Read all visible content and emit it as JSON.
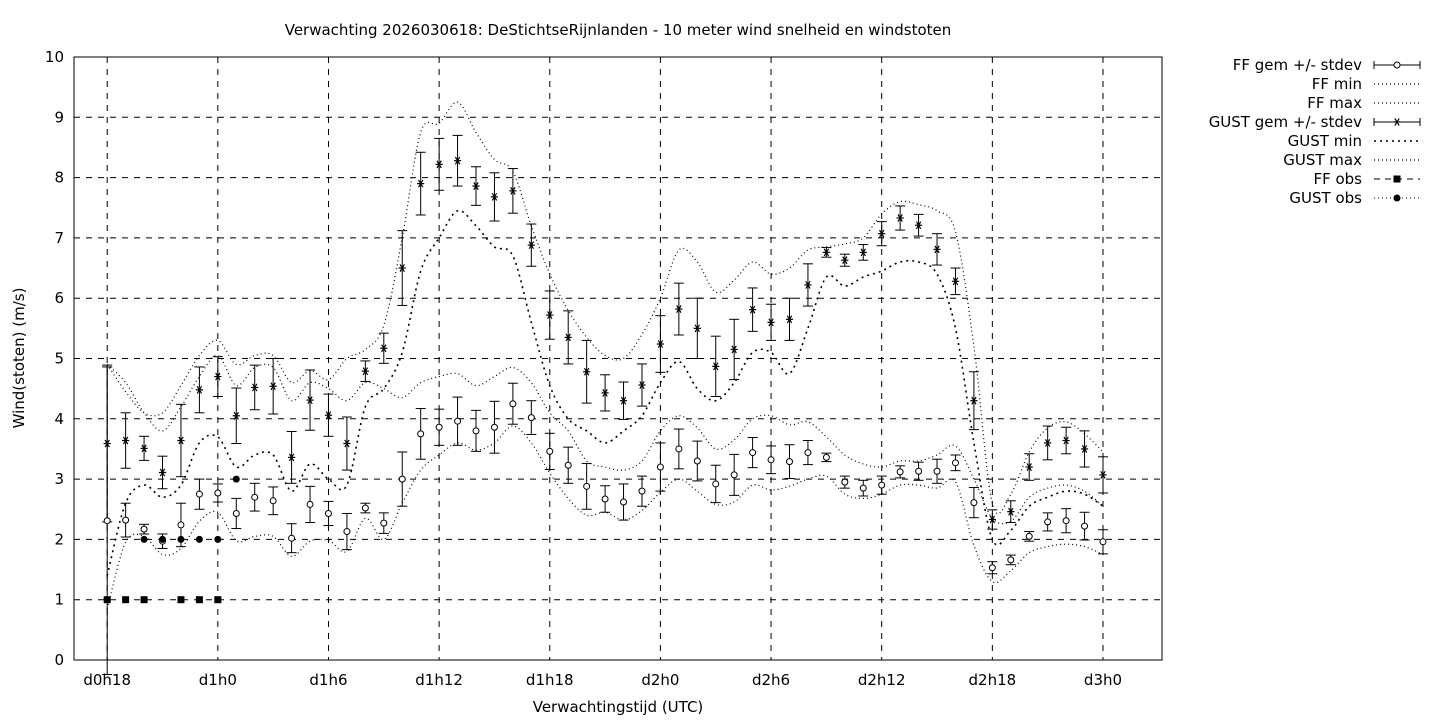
{
  "chart_data": {
    "type": "scatter",
    "title": "Verwachting 2026030618: DeStichtseRijnlanden - 10 meter wind snelheid en windstoten",
    "xlabel": "Verwachtingstijd (UTC)",
    "ylabel": "Wind(stoten) (m/s)",
    "xlim": [
      -1.8,
      57.2
    ],
    "ylim": [
      0,
      10
    ],
    "x_ticks": [
      0,
      6,
      12,
      18,
      24,
      30,
      36,
      42,
      48,
      54
    ],
    "x_tick_labels": [
      "d0h18",
      "d1h0",
      "d1h6",
      "d1h12",
      "d1h18",
      "d2h0",
      "d2h6",
      "d2h12",
      "d2h18",
      "d3h0"
    ],
    "y_ticks": [
      0,
      1,
      2,
      3,
      4,
      5,
      6,
      7,
      8,
      9,
      10
    ],
    "y_tick_labels": [
      "0",
      "1",
      "2",
      "3",
      "4",
      "5",
      "6",
      "7",
      "8",
      "9",
      "10"
    ],
    "grid": true,
    "legend_position": "outside-right",
    "legend": [
      "FF gem +/- stdev",
      "FF min",
      "FF max",
      "GUST gem +/- stdev",
      "GUST min",
      "GUST max",
      "FF obs",
      "GUST obs"
    ],
    "ff_mean": {
      "x": [
        0,
        1,
        2,
        3,
        4,
        5,
        6,
        7,
        8,
        9,
        10,
        11,
        12,
        13,
        14,
        15,
        16,
        17,
        18,
        19,
        20,
        21,
        22,
        23,
        24,
        25,
        26,
        27,
        28,
        29,
        30,
        31,
        32,
        33,
        34,
        35,
        36,
        37,
        38,
        39,
        40,
        41,
        42,
        43,
        44,
        45,
        46,
        47,
        48,
        49,
        50,
        51,
        52,
        53,
        54
      ],
      "mean": [
        2.31,
        2.32,
        2.17,
        1.97,
        2.24,
        2.75,
        2.77,
        2.43,
        2.7,
        2.64,
        2.02,
        2.58,
        2.43,
        2.13,
        2.52,
        2.27,
        3.0,
        3.75,
        3.86,
        3.96,
        3.8,
        3.86,
        4.25,
        4.02,
        3.46,
        3.23,
        2.88,
        2.67,
        2.62,
        2.8,
        3.2,
        3.5,
        3.3,
        2.92,
        3.07,
        3.44,
        3.32,
        3.29,
        3.44,
        3.36,
        2.95,
        2.85,
        2.9,
        3.12,
        3.13,
        3.13,
        3.27,
        2.61,
        1.53,
        1.66,
        2.05,
        2.29,
        2.31,
        2.22,
        1.96
      ],
      "stdev": [
        2.55,
        0.28,
        0.08,
        0.12,
        0.36,
        0.25,
        0.15,
        0.25,
        0.23,
        0.23,
        0.24,
        0.3,
        0.2,
        0.3,
        0.08,
        0.17,
        0.45,
        0.42,
        0.3,
        0.4,
        0.34,
        0.43,
        0.34,
        0.28,
        0.3,
        0.3,
        0.38,
        0.22,
        0.3,
        0.25,
        0.4,
        0.33,
        0.33,
        0.31,
        0.34,
        0.25,
        0.23,
        0.28,
        0.2,
        0.07,
        0.1,
        0.13,
        0.15,
        0.1,
        0.15,
        0.2,
        0.13,
        0.25,
        0.1,
        0.08,
        0.08,
        0.15,
        0.2,
        0.23,
        0.2
      ]
    },
    "gust_mean": {
      "x": [
        0,
        1,
        2,
        3,
        4,
        5,
        6,
        7,
        8,
        9,
        10,
        11,
        12,
        13,
        14,
        15,
        16,
        17,
        18,
        19,
        20,
        21,
        22,
        23,
        24,
        25,
        26,
        27,
        28,
        29,
        30,
        31,
        32,
        33,
        34,
        35,
        36,
        37,
        38,
        39,
        40,
        41,
        42,
        43,
        44,
        45,
        46,
        47,
        48,
        49,
        50,
        51,
        52,
        53,
        54
      ],
      "mean": [
        3.59,
        3.64,
        3.51,
        3.11,
        3.64,
        4.48,
        4.7,
        4.05,
        4.52,
        4.54,
        3.36,
        4.31,
        4.06,
        3.59,
        4.79,
        5.17,
        6.5,
        7.9,
        8.22,
        8.28,
        7.86,
        7.68,
        7.78,
        6.88,
        5.72,
        5.35,
        4.78,
        4.43,
        4.3,
        4.56,
        5.24,
        5.82,
        5.5,
        4.87,
        5.15,
        5.81,
        5.6,
        5.65,
        6.22,
        6.76,
        6.63,
        6.76,
        7.07,
        7.33,
        7.21,
        6.81,
        6.28,
        4.3,
        2.33,
        2.46,
        3.2,
        3.6,
        3.64,
        3.5,
        3.07
      ]
    },
    "ff_min": {
      "x": [
        0,
        1,
        2,
        3,
        4,
        5,
        6,
        7,
        8,
        9,
        10,
        11,
        12,
        13,
        14,
        15,
        16,
        17,
        18,
        19,
        20,
        21,
        22,
        23,
        24,
        25,
        26,
        27,
        28,
        29,
        30,
        31,
        32,
        33,
        34,
        35,
        36,
        37,
        38,
        39,
        40,
        41,
        42,
        43,
        44,
        45,
        46,
        47,
        48,
        49,
        50,
        51,
        52,
        53,
        54
      ],
      "values": [
        0.85,
        1.95,
        2.05,
        1.75,
        1.85,
        2.3,
        2.45,
        1.98,
        2.05,
        2.05,
        1.72,
        1.97,
        1.98,
        1.8,
        2.35,
        2.0,
        2.6,
        3.15,
        3.4,
        3.6,
        3.48,
        3.6,
        3.88,
        3.6,
        3.1,
        2.68,
        2.4,
        2.45,
        2.32,
        2.48,
        2.78,
        3.0,
        2.8,
        2.58,
        2.62,
        2.9,
        2.82,
        2.88,
        3.0,
        3.05,
        2.75,
        2.68,
        2.75,
        2.9,
        2.9,
        2.85,
        2.95,
        1.9,
        1.3,
        1.48,
        1.78,
        1.88,
        1.92,
        1.88,
        1.75
      ]
    },
    "ff_max": {
      "x": [
        0,
        1,
        2,
        3,
        4,
        5,
        6,
        7,
        8,
        9,
        10,
        11,
        12,
        13,
        14,
        15,
        16,
        17,
        18,
        19,
        20,
        21,
        22,
        23,
        24,
        25,
        26,
        27,
        28,
        29,
        30,
        31,
        32,
        33,
        34,
        35,
        36,
        37,
        38,
        39,
        40,
        41,
        42,
        43,
        44,
        45,
        46,
        47,
        48,
        49,
        50,
        51,
        52,
        53,
        54
      ],
      "values": [
        4.9,
        4.6,
        4.1,
        3.8,
        4.2,
        4.7,
        5.05,
        4.55,
        4.85,
        4.85,
        4.3,
        4.6,
        4.5,
        4.3,
        4.6,
        4.5,
        4.35,
        4.6,
        4.7,
        4.75,
        4.55,
        4.7,
        4.85,
        4.6,
        4.1,
        3.8,
        3.3,
        3.2,
        3.15,
        3.3,
        3.8,
        4.05,
        3.85,
        3.5,
        3.65,
        4.0,
        4.05,
        3.9,
        3.95,
        3.7,
        3.4,
        3.25,
        3.2,
        3.3,
        3.3,
        3.4,
        3.55,
        3.0,
        2.35,
        2.3,
        2.7,
        2.85,
        2.9,
        2.8,
        2.55
      ]
    },
    "gust_min": {
      "x": [
        0,
        1,
        2,
        3,
        4,
        5,
        6,
        7,
        8,
        9,
        10,
        11,
        12,
        13,
        14,
        15,
        16,
        17,
        18,
        19,
        20,
        21,
        22,
        23,
        24,
        25,
        26,
        27,
        28,
        29,
        30,
        31,
        32,
        33,
        34,
        35,
        36,
        37,
        38,
        39,
        40,
        41,
        42,
        43,
        44,
        45,
        46,
        47,
        48,
        49,
        50,
        51,
        52,
        53,
        54
      ],
      "values": [
        1.4,
        2.6,
        2.9,
        2.7,
        2.9,
        3.6,
        3.7,
        3.2,
        3.4,
        3.4,
        2.8,
        3.25,
        3.0,
        2.9,
        4.2,
        4.5,
        5.1,
        6.45,
        7.0,
        7.45,
        7.2,
        6.85,
        6.7,
        5.6,
        4.55,
        4.0,
        3.8,
        3.6,
        3.8,
        4.05,
        4.6,
        4.95,
        4.5,
        4.3,
        4.6,
        5.1,
        5.1,
        4.75,
        5.5,
        6.35,
        6.2,
        6.35,
        6.45,
        6.6,
        6.6,
        6.4,
        5.5,
        3.6,
        2.0,
        2.15,
        2.55,
        2.7,
        2.8,
        2.75,
        2.55
      ]
    },
    "gust_max": {
      "x": [
        0,
        1,
        2,
        3,
        4,
        5,
        6,
        7,
        8,
        9,
        10,
        11,
        12,
        13,
        14,
        15,
        16,
        17,
        18,
        19,
        20,
        21,
        22,
        23,
        24,
        25,
        26,
        27,
        28,
        29,
        30,
        31,
        32,
        33,
        34,
        35,
        36,
        37,
        38,
        39,
        40,
        41,
        42,
        43,
        44,
        45,
        46,
        47,
        48,
        49,
        50,
        51,
        52,
        53,
        54
      ],
      "values": [
        4.9,
        4.45,
        4.1,
        4.1,
        4.55,
        5.05,
        5.3,
        4.9,
        5.05,
        5.05,
        4.6,
        4.8,
        4.65,
        5.0,
        5.15,
        5.55,
        7.0,
        8.75,
        8.9,
        9.25,
        8.75,
        8.3,
        8.1,
        7.2,
        6.4,
        5.8,
        5.35,
        5.05,
        5.0,
        5.4,
        6.0,
        6.8,
        6.6,
        6.1,
        6.3,
        6.6,
        6.4,
        6.5,
        6.8,
        6.85,
        6.9,
        7.0,
        7.4,
        7.6,
        7.55,
        7.45,
        7.1,
        5.2,
        2.6,
        2.75,
        3.45,
        3.85,
        3.95,
        3.75,
        3.45
      ]
    },
    "ff_obs": {
      "x": [
        0,
        1,
        2,
        4,
        5,
        6
      ],
      "values": [
        1,
        1,
        1,
        1,
        1,
        1
      ]
    },
    "gust_obs": {
      "x": [
        2,
        3,
        4,
        5,
        6,
        7
      ],
      "values": [
        2,
        2,
        2,
        2,
        2,
        3
      ]
    }
  }
}
